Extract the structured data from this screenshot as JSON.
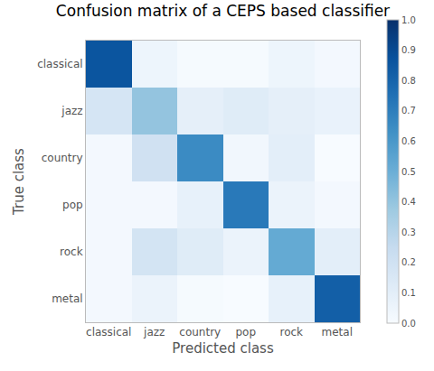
{
  "chart_data": {
    "type": "heatmap",
    "title": "Confusion matrix of a CEPS based classifier",
    "x_label": "Predicted class",
    "y_label": "True class",
    "categories": [
      "classical",
      "jazz",
      "country",
      "pop",
      "rock",
      "metal"
    ],
    "cells": [
      [
        0.86,
        0.05,
        0.01,
        0.01,
        0.05,
        0.02
      ],
      [
        0.17,
        0.4,
        0.09,
        0.12,
        0.09,
        0.07
      ],
      [
        0.02,
        0.2,
        0.65,
        0.03,
        0.1,
        0.0
      ],
      [
        0.02,
        0.02,
        0.08,
        0.72,
        0.06,
        0.02
      ],
      [
        0.02,
        0.18,
        0.12,
        0.06,
        0.52,
        0.1
      ],
      [
        0.02,
        0.06,
        0.01,
        0.0,
        0.08,
        0.82
      ]
    ],
    "colorbar": {
      "range": [
        0,
        1
      ],
      "ticks": [
        {
          "value": 0,
          "label": "0.0"
        },
        {
          "value": 0.1,
          "label": "0.1"
        },
        {
          "value": 0.2,
          "label": "0.2"
        },
        {
          "value": 0.3,
          "label": "0.3"
        },
        {
          "value": 0.4,
          "label": "0.4"
        },
        {
          "value": 0.5,
          "label": "0.5"
        },
        {
          "value": 0.6,
          "label": "0.6"
        },
        {
          "value": 0.7,
          "label": "0.7"
        },
        {
          "value": 0.8,
          "label": "0.8"
        },
        {
          "value": 0.9,
          "label": "0.9"
        },
        {
          "value": 1,
          "label": "1.0"
        }
      ]
    }
  }
}
